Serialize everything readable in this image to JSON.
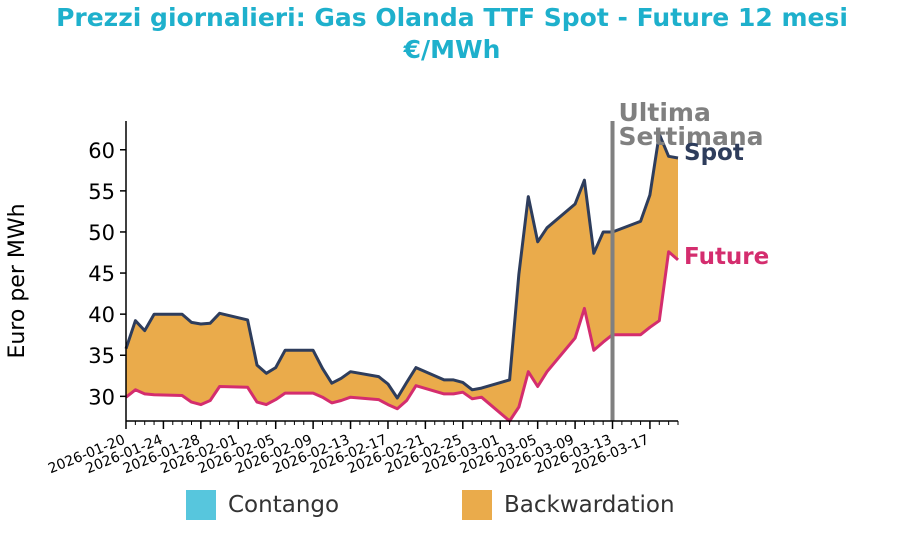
{
  "title_line1": "Prezzi giornalieri: Gas Olanda TTF Spot - Future 12 mesi",
  "title_line2": "€/MWh",
  "colors": {
    "title": "#1eb0cc",
    "spot": "#2e3d5c",
    "future": "#d42d6e",
    "backwardation": "#eaab4b",
    "contango": "#57c6dd",
    "marker": "#808080"
  },
  "marker_label_line1": "Ultima",
  "marker_label_line2": "Settimana",
  "legend": {
    "contango": "Contango",
    "backwardation": "Backwardation"
  },
  "chart_data": {
    "type": "area",
    "ylabel": "Euro per MWh",
    "ylim": [
      27,
      63.5
    ],
    "yticks": [
      30,
      35,
      40,
      45,
      50,
      55,
      60
    ],
    "xticks": [
      "2026-01-20",
      "2026-01-24",
      "2026-01-28",
      "2026-02-01",
      "2026-02-05",
      "2026-02-09",
      "2026-02-13",
      "2026-02-17",
      "2026-02-21",
      "2026-02-25",
      "2026-03-01",
      "2026-03-05",
      "2026-03-09",
      "2026-03-13",
      "2026-03-17"
    ],
    "marker_date": "2026-03-13",
    "x": [
      "2026-01-20",
      "2026-01-21",
      "2026-01-22",
      "2026-01-23",
      "2026-01-26",
      "2026-01-27",
      "2026-01-28",
      "2026-01-29",
      "2026-01-30",
      "2026-02-02",
      "2026-02-03",
      "2026-02-04",
      "2026-02-05",
      "2026-02-06",
      "2026-02-09",
      "2026-02-10",
      "2026-02-11",
      "2026-02-12",
      "2026-02-13",
      "2026-02-16",
      "2026-02-17",
      "2026-02-18",
      "2026-02-19",
      "2026-02-20",
      "2026-02-23",
      "2026-02-24",
      "2026-02-25",
      "2026-02-26",
      "2026-02-27",
      "2026-03-02",
      "2026-03-03",
      "2026-03-04",
      "2026-03-05",
      "2026-03-06",
      "2026-03-09",
      "2026-03-10",
      "2026-03-11",
      "2026-03-12",
      "2026-03-13",
      "2026-03-16",
      "2026-03-17",
      "2026-03-18",
      "2026-03-19",
      "2026-03-20"
    ],
    "series": [
      {
        "name": "Spot",
        "values": [
          35.8,
          39.2,
          38.0,
          40.0,
          40.0,
          39.0,
          38.8,
          38.9,
          40.1,
          39.3,
          33.8,
          32.8,
          33.5,
          35.6,
          35.6,
          33.4,
          31.6,
          32.2,
          33.0,
          32.4,
          31.5,
          29.8,
          31.7,
          33.5,
          32.0,
          32.0,
          31.7,
          30.8,
          31.0,
          32.0,
          44.9,
          54.3,
          48.8,
          50.5,
          53.4,
          56.3,
          47.4,
          50.0,
          50.0,
          51.3,
          54.5,
          61.9,
          59.2,
          59.0
        ]
      },
      {
        "name": "Future",
        "values": [
          29.9,
          30.8,
          30.3,
          30.2,
          30.1,
          29.3,
          29.0,
          29.5,
          31.2,
          31.1,
          29.3,
          29.0,
          29.6,
          30.4,
          30.4,
          29.9,
          29.2,
          29.5,
          29.9,
          29.6,
          29.0,
          28.5,
          29.5,
          31.3,
          30.3,
          30.3,
          30.5,
          29.7,
          29.9,
          27.0,
          28.7,
          33.0,
          31.2,
          33.0,
          37.1,
          40.7,
          35.6,
          36.6,
          37.5,
          37.5,
          38.4,
          39.2,
          47.6,
          46.6
        ]
      }
    ]
  }
}
